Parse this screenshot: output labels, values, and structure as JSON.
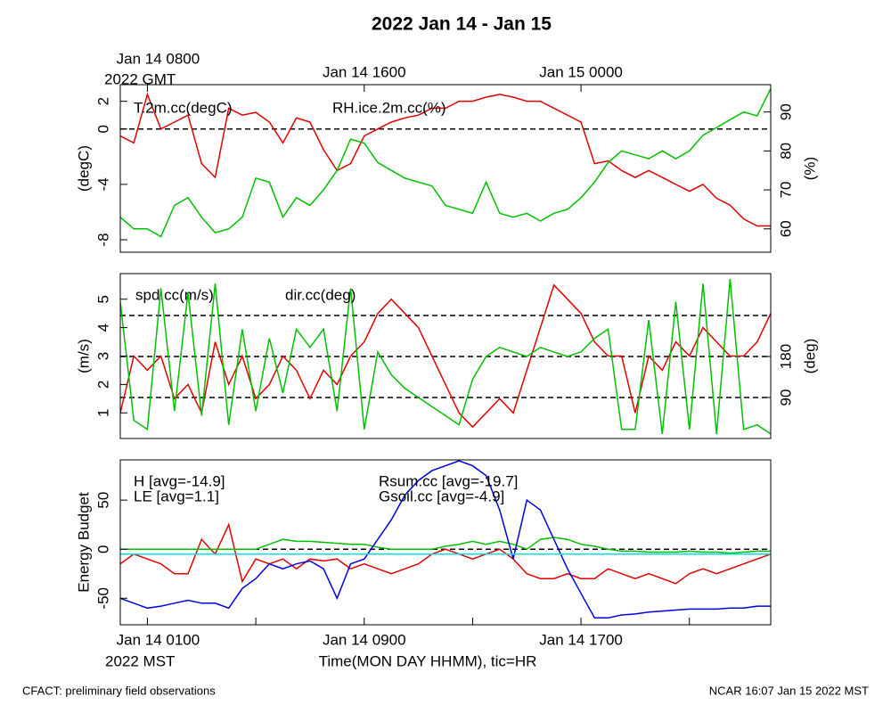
{
  "title": "2022 Jan 14 - Jan 15",
  "footer_left": "CFACT: preliminary field observations",
  "footer_right": "NCAR 16:07 Jan 15 2022 MST",
  "chart_data": [
    {
      "type": "line",
      "xlim": [
        0,
        24
      ],
      "x2ticks": [
        {
          "value": 1,
          "label": "Jan 14 0800"
        },
        {
          "value": 9,
          "label": "Jan 14 1600"
        },
        {
          "value": 17,
          "label": "Jan 15 0000"
        }
      ],
      "x2_year_label": "2022 GMT",
      "ylabel": "(degC)",
      "y2label": "(%)",
      "ylim": [
        -8.9,
        3.2
      ],
      "yticks": [
        -8,
        -4,
        0,
        2
      ],
      "y2lim": [
        54,
        97
      ],
      "y2ticks": [
        60,
        70,
        80,
        90
      ],
      "yrefs": [
        0
      ],
      "x": [
        0,
        0.5,
        1,
        1.5,
        2,
        2.5,
        3,
        3.5,
        4,
        4.5,
        5,
        5.5,
        6,
        6.5,
        7,
        7.5,
        8,
        8.5,
        9,
        9.5,
        10,
        10.5,
        11,
        11.5,
        12,
        12.5,
        13,
        13.5,
        14,
        14.5,
        15,
        15.5,
        16,
        16.5,
        17,
        17.5,
        18,
        18.5,
        19,
        19.5,
        20,
        20.5,
        21,
        21.5,
        22,
        22.5,
        23,
        23.5,
        24
      ],
      "series": [
        {
          "name": "T.2m.cc(degC)",
          "color": "#e00000",
          "values": [
            -0.5,
            -1,
            2.5,
            0,
            0.5,
            1,
            -2.5,
            -3.5,
            1.5,
            1,
            1.2,
            0.5,
            -1,
            0.8,
            0.5,
            -1.5,
            -3,
            -2.5,
            -0.5,
            0,
            0.5,
            0.8,
            1,
            1.5,
            1.5,
            2,
            2,
            2.3,
            2.5,
            2.3,
            2,
            2,
            1.5,
            1,
            0.5,
            -2.5,
            -2.3,
            -3,
            -3.5,
            -3,
            -3.5,
            -4,
            -4.5,
            -4,
            -5,
            -5.5,
            -6.5,
            -7,
            -7
          ]
        },
        {
          "name": "RH.ice.2m.cc(%)",
          "color": "#00c000",
          "axis": "y2",
          "values": [
            63,
            60,
            60,
            58,
            66,
            68,
            63,
            59,
            60,
            63,
            73,
            72,
            63,
            68,
            66,
            70,
            75,
            83,
            82,
            77,
            75,
            73,
            72,
            71,
            66,
            65,
            64,
            72,
            64,
            63,
            64,
            62,
            64,
            65,
            68,
            72,
            77,
            80,
            79,
            78,
            80,
            78,
            80,
            84,
            86,
            88,
            90,
            89,
            96
          ]
        }
      ]
    },
    {
      "type": "line",
      "xlim": [
        0,
        24
      ],
      "ylabel": "(m/s)",
      "y2label": "(deg)",
      "ylim": [
        0.1,
        5.9
      ],
      "yticks": [
        1,
        2,
        3,
        4,
        5
      ],
      "y2lim": [
        0,
        362
      ],
      "y2ticks": [
        90,
        180
      ],
      "y2refs": [
        90,
        180,
        270
      ],
      "x": [
        0,
        0.5,
        1,
        1.5,
        2,
        2.5,
        3,
        3.5,
        4,
        4.5,
        5,
        5.5,
        6,
        6.5,
        7,
        7.5,
        8,
        8.5,
        9,
        9.5,
        10,
        10.5,
        11,
        11.5,
        12,
        12.5,
        13,
        13.5,
        14,
        14.5,
        15,
        15.5,
        16,
        16.5,
        17,
        17.5,
        18,
        18.5,
        19,
        19.5,
        20,
        20.5,
        21,
        21.5,
        22,
        22.5,
        23,
        23.5,
        24
      ],
      "series": [
        {
          "name": "spd.cc(m/s)",
          "color": "#e00000",
          "values": [
            1,
            3,
            2.5,
            3,
            1.5,
            2,
            1,
            3.5,
            2,
            3,
            1.5,
            2,
            3,
            2.5,
            1.5,
            2.5,
            2,
            3,
            3.5,
            4.5,
            5,
            4.5,
            4,
            3,
            2,
            1,
            0.5,
            1,
            1.5,
            1,
            2.5,
            4,
            5.5,
            5,
            4.5,
            3.5,
            3,
            3,
            1,
            3,
            2.5,
            3.5,
            3,
            4,
            3.5,
            3,
            3,
            3.5,
            4.5
          ]
        },
        {
          "name": "dir.cc(deg)",
          "color": "#00c000",
          "axis": "y2",
          "values": [
            300,
            40,
            20,
            330,
            60,
            320,
            50,
            340,
            30,
            240,
            60,
            220,
            100,
            240,
            200,
            240,
            60,
            330,
            20,
            190,
            140,
            110,
            90,
            70,
            50,
            30,
            130,
            180,
            200,
            190,
            180,
            200,
            190,
            180,
            190,
            220,
            240,
            20,
            20,
            260,
            10,
            300,
            20,
            340,
            10,
            350,
            20,
            30,
            10
          ]
        }
      ]
    },
    {
      "type": "line",
      "xlim": [
        0,
        24
      ],
      "xticks": [
        {
          "value": 1,
          "label": "Jan 14 0100"
        },
        {
          "value": 9,
          "label": "Jan 14 0900"
        },
        {
          "value": 17,
          "label": "Jan 14 1700"
        }
      ],
      "xminor": [
        5,
        13,
        21
      ],
      "x_year_label": "2022 MST",
      "xlabel": "Time(MON DAY HHMM), tic=HR",
      "ylabel": "Energy Budget",
      "ylim": [
        -77,
        91
      ],
      "yticks": [
        -50,
        0,
        50
      ],
      "yrefs": [
        0
      ],
      "x": [
        0,
        0.5,
        1,
        1.5,
        2,
        2.5,
        3,
        3.5,
        4,
        4.5,
        5,
        5.5,
        6,
        6.5,
        7,
        7.5,
        8,
        8.5,
        9,
        9.5,
        10,
        10.5,
        11,
        11.5,
        12,
        12.5,
        13,
        13.5,
        14,
        14.5,
        15,
        15.5,
        16,
        16.5,
        17,
        17.5,
        18,
        18.5,
        19,
        19.5,
        20,
        20.5,
        21,
        21.5,
        22,
        22.5,
        23,
        23.5,
        24
      ],
      "series": [
        {
          "name": "H [avg=-14.9]",
          "color": "#e00000",
          "values": [
            -15,
            -5,
            -10,
            -15,
            -25,
            -25,
            10,
            -5,
            25,
            -33,
            -10,
            -15,
            -10,
            -20,
            -10,
            -12,
            -10,
            -20,
            -15,
            -20,
            -25,
            -20,
            -15,
            -5,
            0,
            -5,
            -10,
            -5,
            0,
            -10,
            -25,
            -30,
            -30,
            -25,
            -30,
            -30,
            -20,
            -25,
            -30,
            -25,
            -30,
            -35,
            -25,
            -20,
            -25,
            -20,
            -15,
            -10,
            -5
          ]
        },
        {
          "name": "LE [avg=1.1]",
          "color": "#00c000",
          "values": [
            0,
            0,
            0,
            0,
            0,
            0,
            0,
            0,
            0,
            0,
            0,
            5,
            10,
            8,
            8,
            7,
            6,
            5,
            5,
            2,
            0,
            0,
            0,
            0,
            3,
            5,
            8,
            5,
            8,
            5,
            0,
            10,
            12,
            10,
            5,
            3,
            0,
            -2,
            -2,
            -3,
            -3,
            -3,
            -2,
            -3,
            -3,
            -4,
            -3,
            -2,
            -2
          ]
        },
        {
          "name": "Rsum.cc [avg=-19.7]",
          "color": "#0000e0",
          "values": [
            -50,
            -55,
            -60,
            -58,
            -55,
            -52,
            -55,
            -55,
            -60,
            -40,
            -30,
            -15,
            -20,
            -15,
            -12,
            -20,
            -50,
            -15,
            -10,
            10,
            30,
            55,
            70,
            80,
            85,
            90,
            85,
            75,
            40,
            -10,
            50,
            40,
            10,
            -20,
            -45,
            -70,
            -70,
            -67,
            -66,
            -64,
            -63,
            -62,
            -61,
            -61,
            -61,
            -60,
            -60,
            -58,
            -58
          ]
        },
        {
          "name": "Gsoil.cc [avg=-4.9]",
          "color": "#00e0e0",
          "values": [
            -5,
            -5,
            -5,
            -5,
            -5,
            -5,
            -5,
            -5,
            -5,
            -5,
            -5,
            -5,
            -5,
            -5,
            -5,
            -5,
            -5,
            -5,
            -5,
            -5,
            -5,
            -5,
            -5,
            -5,
            -5,
            -5,
            -5,
            -5,
            -5,
            -5,
            -5,
            -5,
            -5,
            -5,
            -5,
            -5,
            -5,
            -5,
            -5,
            -5,
            -5,
            -5,
            -5,
            -5,
            -5,
            -5,
            -5,
            -5,
            -5
          ]
        }
      ]
    }
  ]
}
